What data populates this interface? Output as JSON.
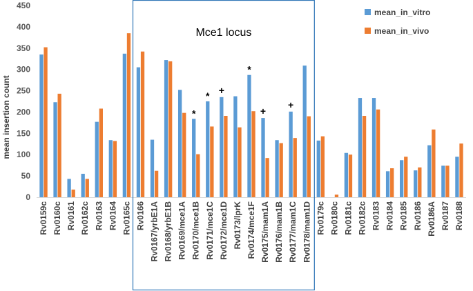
{
  "chart_data": {
    "type": "bar",
    "title": "",
    "xlabel": "",
    "ylabel": "mean insertion count",
    "ylim": [
      0,
      450
    ],
    "yticks": [
      0,
      50,
      100,
      150,
      200,
      250,
      300,
      350,
      400,
      450
    ],
    "grid": false,
    "legend_position": "top-right",
    "categories": [
      "Rv0159c",
      "Rv0160c",
      "Rv0161",
      "Rv0162c",
      "Rv0163",
      "Rv0164",
      "Rv0165c",
      "Rv0166",
      "Rv0167/yrbE1A",
      "Rv0168/yrbE1B",
      "Rv0169/mce1A",
      "Rv0170/mce1B",
      "Rv0171/mce1C",
      "Rv0172/mce1D",
      "Rv0173/lprK",
      "Rv0174/mce1F",
      "Rv0175/mam1A",
      "Rv0176/mam1B",
      "Rv0177/mam1C",
      "Rv0178/mam1D",
      "Rv0179c",
      "Rv0180c",
      "Rv0181c",
      "Rv0182c",
      "Rv0183",
      "Rv0184",
      "Rv0185",
      "Rv0186",
      "Rv0186A",
      "Rv0187",
      "Rv0188"
    ],
    "series": [
      {
        "name": "mean_in_vitro",
        "color": "#5B9BD5",
        "values": [
          335,
          223,
          43,
          55,
          177,
          134,
          337,
          305,
          135,
          322,
          252,
          184,
          225,
          235,
          237,
          287,
          186,
          134,
          201,
          309,
          133,
          0,
          104,
          233,
          233,
          61,
          87,
          63,
          122,
          74,
          95
        ]
      },
      {
        "name": "mean_in_vivo",
        "color": "#ED7D31",
        "values": [
          352,
          243,
          18,
          43,
          208,
          132,
          385,
          342,
          62,
          319,
          198,
          101,
          166,
          191,
          164,
          202,
          92,
          127,
          139,
          190,
          143,
          6,
          100,
          191,
          206,
          68,
          95,
          70,
          159,
          74,
          126
        ]
      }
    ],
    "region": {
      "label": "Mce1 locus",
      "start_category": "Rv0166",
      "end_category": "Rv0178/mam1D"
    },
    "annotations": [
      {
        "category": "Rv0170/mce1B",
        "symbol": "*"
      },
      {
        "category": "Rv0171/mce1C",
        "symbol": "*"
      },
      {
        "category": "Rv0172/mce1D",
        "symbol": "+"
      },
      {
        "category": "Rv0174/mce1F",
        "symbol": "*"
      },
      {
        "category": "Rv0175/mam1A",
        "symbol": "+"
      },
      {
        "category": "Rv0177/mam1C",
        "symbol": "+"
      }
    ]
  }
}
